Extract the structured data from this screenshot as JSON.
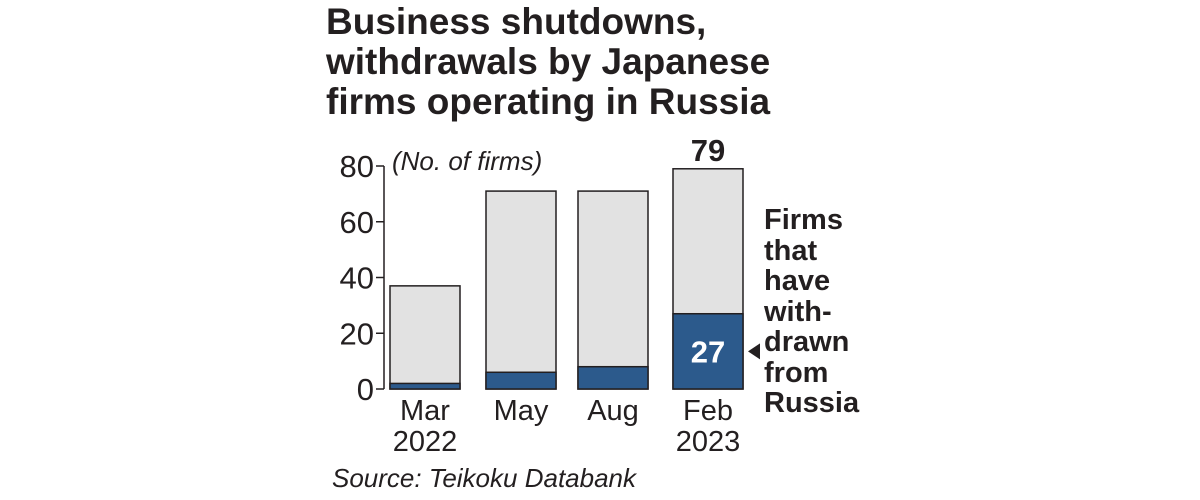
{
  "title_lines": [
    "Business shutdowns,",
    "withdrawals by Japanese",
    "firms operating in Russia"
  ],
  "source": "Source: Teikoku Databank",
  "colors": {
    "total_fill": "#e2e2e2",
    "withdrawn_fill": "#2c5a8c",
    "stroke": "#231f20",
    "text": "#231f20"
  },
  "chart_data": {
    "type": "bar",
    "title": "Business shutdowns, withdrawals by Japanese firms operating in Russia",
    "ylabel": "(No. of firms)",
    "ylim": [
      0,
      80
    ],
    "yticks": [
      "0",
      "20",
      "40",
      "60",
      "80"
    ],
    "categories": [
      [
        "Mar",
        "2022"
      ],
      [
        "May"
      ],
      [
        "Aug"
      ],
      [
        "Feb",
        "2023"
      ]
    ],
    "series": [
      {
        "key": "total",
        "values": [
          37,
          71,
          71,
          79
        ]
      },
      {
        "key": "withdrawn",
        "name": "Firms that have with-drawn from Russia",
        "values": [
          2,
          6,
          8,
          27
        ]
      }
    ],
    "data_labels": {
      "total_last": "79",
      "withdrawn_last": "27"
    },
    "annotation_lines": [
      "Firms",
      "that",
      "have",
      "with-",
      "drawn",
      "from",
      "Russia"
    ],
    "grid": false
  }
}
